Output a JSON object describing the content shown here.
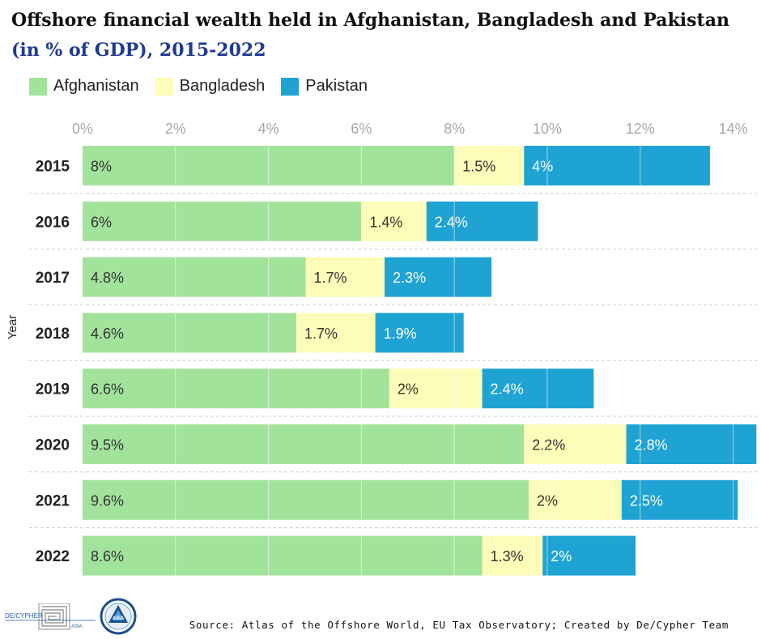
{
  "header": {
    "title": "Offshore financial wealth held in Afghanistan, Bangladesh and Pakistan",
    "subtitle": "(in % of GDP), 2015-2022"
  },
  "legend": [
    {
      "label": "Afghanistan",
      "color": "#a2e39b"
    },
    {
      "label": "Bangladesh",
      "color": "#fdfcb9"
    },
    {
      "label": "Pakistan",
      "color": "#1fa3d2"
    }
  ],
  "chart_data": {
    "type": "bar",
    "orientation": "horizontal",
    "stacked": true,
    "categories": [
      "2015",
      "2016",
      "2017",
      "2018",
      "2019",
      "2020",
      "2021",
      "2022"
    ],
    "series": [
      {
        "name": "Afghanistan",
        "values": [
          8,
          6,
          4.8,
          4.6,
          6.6,
          9.5,
          9.6,
          8.6
        ],
        "labels": [
          "8%",
          "6%",
          "4.8%",
          "4.6%",
          "6.6%",
          "9.5%",
          "9.6%",
          "8.6%"
        ]
      },
      {
        "name": "Bangladesh",
        "values": [
          1.5,
          1.4,
          1.7,
          1.7,
          2,
          2.2,
          2,
          1.3
        ],
        "labels": [
          "1.5%",
          "1.4%",
          "1.7%",
          "1.7%",
          "2%",
          "2.2%",
          "2%",
          "1.3%"
        ]
      },
      {
        "name": "Pakistan",
        "values": [
          4,
          2.4,
          2.3,
          1.9,
          2.4,
          2.8,
          2.5,
          2
        ],
        "labels": [
          "4%",
          "2.4%",
          "2.3%",
          "1.9%",
          "2.4%",
          "2.8%",
          "2.5%",
          "2%"
        ]
      }
    ],
    "xlim": [
      0,
      14
    ],
    "x_ticks": [
      "0%",
      "2%",
      "4%",
      "6%",
      "8%",
      "10%",
      "12%",
      "14%"
    ],
    "ylabel": "Year",
    "xlabel": "",
    "grid": true
  },
  "footer": {
    "source": "Source: Atlas of the Offshore World, EU Tax Observatory; Created by De/Cypher Team",
    "logo_text": "DE/CYPHER",
    "logo_sub": "ASIA",
    "badge_text": "ASIA"
  }
}
